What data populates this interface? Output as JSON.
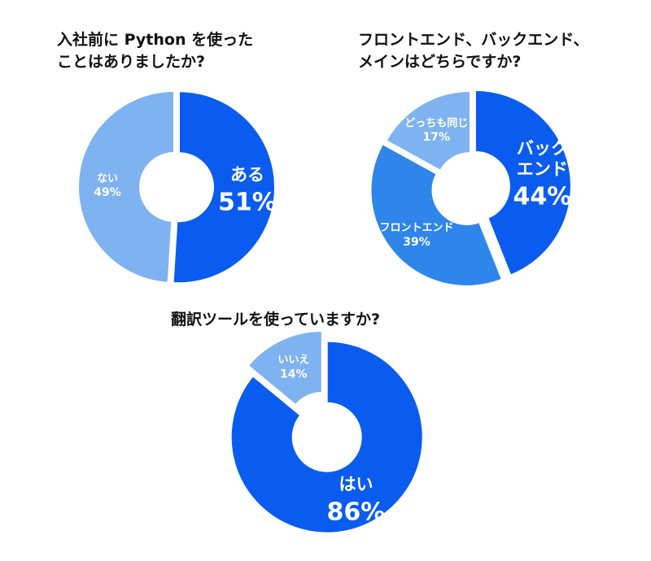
{
  "chart_data": [
    {
      "type": "pie",
      "title_lines": [
        "入社前に Python を使った",
        "ことはありましたか?"
      ],
      "slices": [
        {
          "label": "ある",
          "value": 51,
          "value_text": "51%",
          "color": "#0a5cf0",
          "large": true
        },
        {
          "label": "ない",
          "value": 49,
          "value_text": "49%",
          "color": "#7fb2f0",
          "large": false
        }
      ]
    },
    {
      "type": "pie",
      "title_lines": [
        "フロントエンド、バックエンド、",
        "メインはどちらですか?"
      ],
      "slices": [
        {
          "label": "バック\nエンド",
          "value": 44,
          "value_text": "44%",
          "color": "#0a5cf0",
          "large": true
        },
        {
          "label": "フロントエンド",
          "value": 39,
          "value_text": "39%",
          "color": "#2f86ea",
          "large": false
        },
        {
          "label": "どっちも同じ",
          "value": 17,
          "value_text": "17%",
          "color": "#7fb2f0",
          "large": false
        }
      ]
    },
    {
      "type": "pie",
      "title_lines": [
        "翻訳ツールを使っていますか?"
      ],
      "slices": [
        {
          "label": "はい",
          "value": 86,
          "value_text": "86%",
          "color": "#0a5cf0",
          "large": true
        },
        {
          "label": "いいえ",
          "value": 14,
          "value_text": "14%",
          "color": "#7fb2f0",
          "large": false
        }
      ]
    }
  ]
}
